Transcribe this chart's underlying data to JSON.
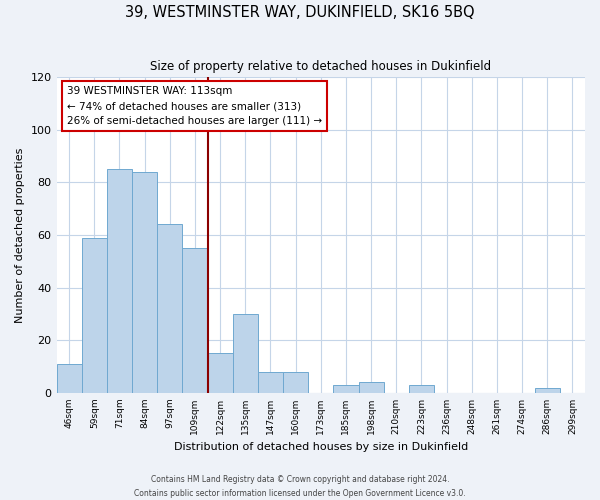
{
  "title": "39, WESTMINSTER WAY, DUKINFIELD, SK16 5BQ",
  "subtitle": "Size of property relative to detached houses in Dukinfield",
  "xlabel": "Distribution of detached houses by size in Dukinfield",
  "ylabel": "Number of detached properties",
  "bar_labels": [
    "46sqm",
    "59sqm",
    "71sqm",
    "84sqm",
    "97sqm",
    "109sqm",
    "122sqm",
    "135sqm",
    "147sqm",
    "160sqm",
    "173sqm",
    "185sqm",
    "198sqm",
    "210sqm",
    "223sqm",
    "236sqm",
    "248sqm",
    "261sqm",
    "274sqm",
    "286sqm",
    "299sqm"
  ],
  "bar_values": [
    11,
    59,
    85,
    84,
    64,
    55,
    15,
    30,
    8,
    8,
    0,
    3,
    4,
    0,
    3,
    0,
    0,
    0,
    0,
    2,
    0
  ],
  "bar_color": "#bdd4ea",
  "bar_edge_color": "#6fa8d0",
  "vline_x": 5.5,
  "vline_color": "#8b0000",
  "annotation_text": "39 WESTMINSTER WAY: 113sqm\n← 74% of detached houses are smaller (313)\n26% of semi-detached houses are larger (111) →",
  "annotation_box_color": "#ffffff",
  "annotation_box_edge": "#cc0000",
  "ylim": [
    0,
    120
  ],
  "yticks": [
    0,
    20,
    40,
    60,
    80,
    100,
    120
  ],
  "footer_line1": "Contains HM Land Registry data © Crown copyright and database right 2024.",
  "footer_line2": "Contains public sector information licensed under the Open Government Licence v3.0.",
  "background_color": "#eef2f8",
  "plot_background": "#eef2f8",
  "grid_color": "#c5d5e8",
  "plot_bg": "#ffffff"
}
